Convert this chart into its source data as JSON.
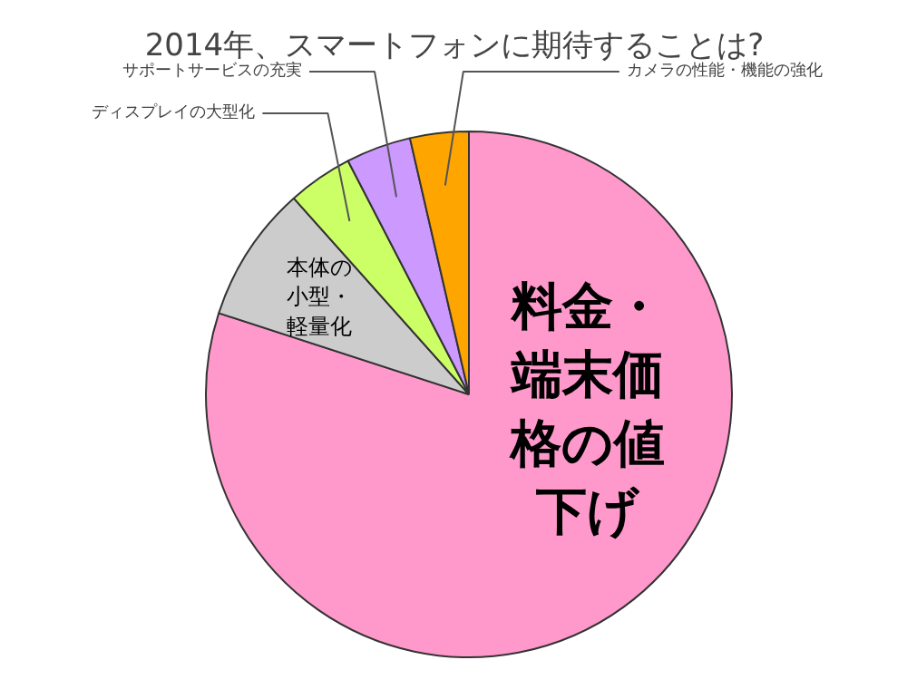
{
  "chart_data": {
    "type": "pie",
    "title": "2014年、スマートフォンに期待することは?",
    "categories": [
      "料金・端末価格の値下げ",
      "本体の小型・軽量化",
      "ディスプレイの大型化",
      "サポートサービスの充実",
      "カメラの性能・機能の強化"
    ],
    "values": [
      80,
      8.4,
      4,
      4,
      3.6
    ],
    "colors": [
      "#ff99cc",
      "#cccccc",
      "#ccff66",
      "#cc99ff",
      "#ffa500"
    ]
  }
}
